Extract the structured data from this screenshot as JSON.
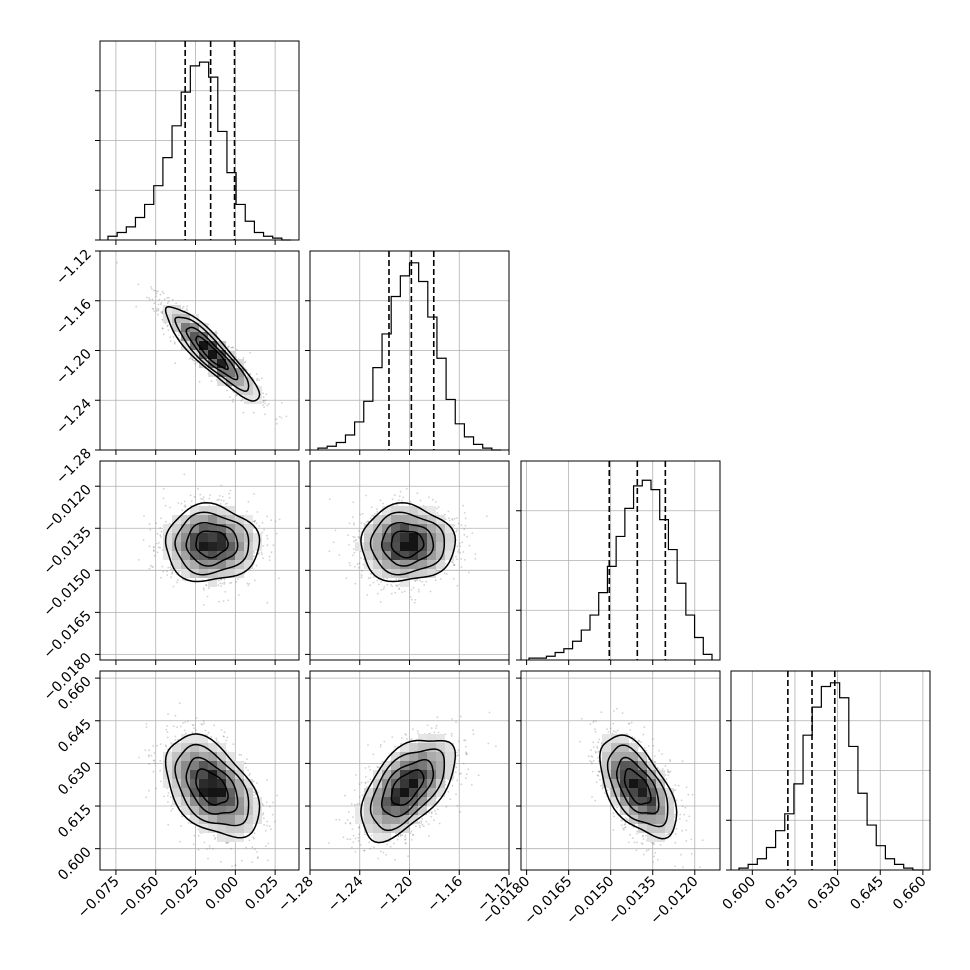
{
  "chart_data": {
    "type": "corner",
    "description_visible_text": "",
    "parameters": [
      {
        "ticks": [
          -0.075,
          -0.05,
          -0.025,
          0.0,
          0.025
        ],
        "tick_labels": [
          "−0.075",
          "−0.050",
          "−0.025",
          "0.000",
          "0.025"
        ],
        "range": [
          -0.085,
          0.04
        ]
      },
      {
        "ticks": [
          -1.28,
          -1.24,
          -1.2,
          -1.16,
          -1.12
        ],
        "tick_labels": [
          "−1.28",
          "−1.24",
          "−1.20",
          "−1.16",
          "−1.12"
        ],
        "range": [
          -1.28,
          -1.12
        ]
      },
      {
        "ticks": [
          -0.018,
          -0.0165,
          -0.015,
          -0.0135,
          -0.012
        ],
        "tick_labels": [
          "−0.0180",
          "−0.0165",
          "−0.0150",
          "−0.0135",
          "−0.0120"
        ],
        "range": [
          -0.0182,
          -0.0111
        ]
      },
      {
        "ticks": [
          0.6,
          0.615,
          0.63,
          0.645,
          0.66
        ],
        "tick_labels": [
          "0.600",
          "0.615",
          "0.630",
          "0.645",
          "0.660"
        ],
        "range": [
          0.5925,
          0.6625
        ]
      }
    ],
    "histograms": [
      {
        "param": 0,
        "quantiles": [
          -0.0315,
          -0.0155,
          -0.0005
        ],
        "bin_heights": [
          0.02,
          0.04,
          0.07,
          0.12,
          0.19,
          0.29,
          0.44,
          0.61,
          0.79,
          0.93,
          0.95,
          0.87,
          0.58,
          0.36,
          0.19,
          0.1,
          0.04,
          0.02,
          0.01,
          0.0
        ]
      },
      {
        "param": 1,
        "quantiles": [
          -1.2165,
          -1.1985,
          -1.1805
        ],
        "bin_heights": [
          0.01,
          0.02,
          0.04,
          0.08,
          0.15,
          0.26,
          0.44,
          0.62,
          0.82,
          0.93,
          1.0,
          0.9,
          0.71,
          0.49,
          0.27,
          0.14,
          0.07,
          0.03,
          0.01,
          0.0
        ]
      },
      {
        "param": 2,
        "quantiles": [
          -0.01505,
          -0.01405,
          -0.01305
        ],
        "bin_heights": [
          0.01,
          0.01,
          0.02,
          0.04,
          0.06,
          0.1,
          0.16,
          0.24,
          0.36,
          0.5,
          0.66,
          0.81,
          0.93,
          0.96,
          0.91,
          0.75,
          0.59,
          0.41,
          0.24,
          0.12,
          0.03
        ]
      },
      {
        "param": 3,
        "quantiles": [
          0.6125,
          0.621,
          0.629
        ],
        "bin_heights": [
          0.01,
          0.03,
          0.06,
          0.12,
          0.21,
          0.3,
          0.46,
          0.72,
          0.87,
          0.98,
          1.0,
          0.92,
          0.66,
          0.41,
          0.24,
          0.13,
          0.06,
          0.03,
          0.01,
          0.0
        ]
      }
    ],
    "scatter_2d": [
      {
        "x": 0,
        "y": 1,
        "mean": [
          -0.015,
          -1.202
        ],
        "std": [
          0.014,
          0.018
        ],
        "corr": -0.9
      },
      {
        "x": 0,
        "y": 2,
        "mean": [
          -0.015,
          -0.01405
        ],
        "std": [
          0.014,
          0.00065
        ],
        "corr": 0.0
      },
      {
        "x": 1,
        "y": 2,
        "mean": [
          -1.202,
          -0.01405
        ],
        "std": [
          0.018,
          0.00065
        ],
        "corr": 0.0
      },
      {
        "x": 0,
        "y": 3,
        "mean": [
          -0.015,
          0.6215
        ],
        "std": [
          0.014,
          0.0085
        ],
        "corr": -0.45
      },
      {
        "x": 1,
        "y": 3,
        "mean": [
          -1.202,
          0.6215
        ],
        "std": [
          0.018,
          0.0085
        ],
        "corr": 0.55
      },
      {
        "x": 2,
        "y": 3,
        "mean": [
          -0.01405,
          0.6215
        ],
        "std": [
          0.00065,
          0.0085
        ],
        "corr": -0.55
      }
    ],
    "grid": true
  }
}
